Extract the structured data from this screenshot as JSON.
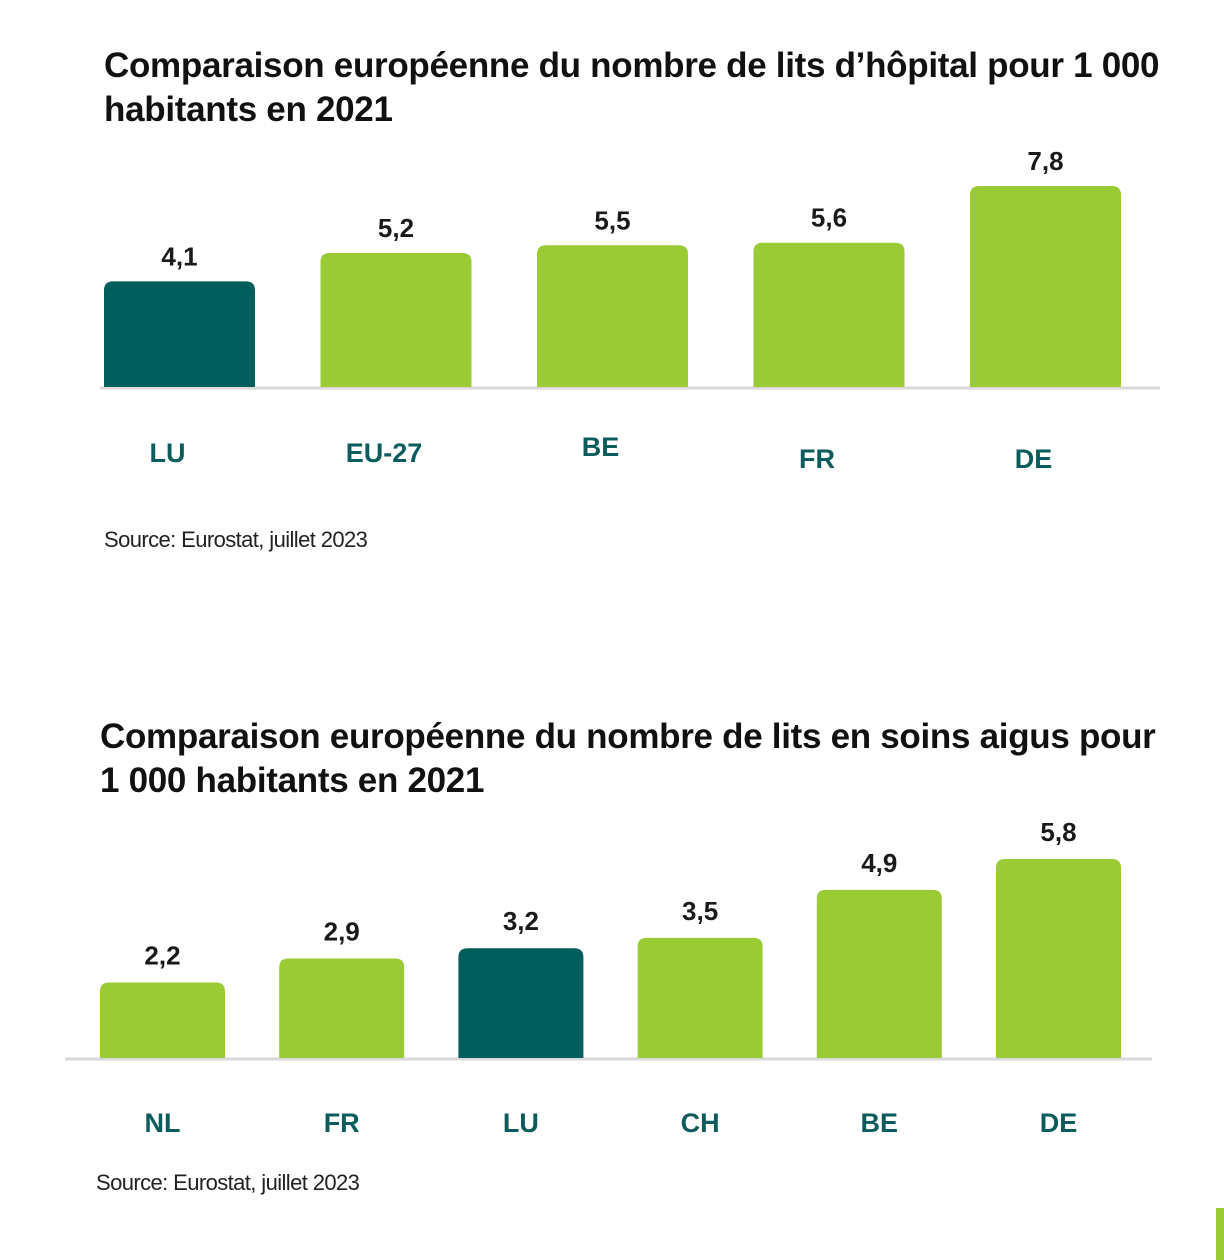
{
  "colors": {
    "highlight": "#005f5c",
    "default": "#9aca34",
    "axis": "#d9d9d9",
    "category_label": "#0b5c5c",
    "accent": "#9aca34"
  },
  "chart_data": [
    {
      "type": "bar",
      "title": "Comparaison européenne du nombre de lits d’hôpital pour 1 000 habitants en 2021",
      "categories": [
        "LU",
        "EU-27",
        "BE",
        "FR",
        "DE"
      ],
      "values": [
        4.1,
        5.2,
        5.5,
        5.6,
        7.8
      ],
      "value_labels": [
        "4,1",
        "5,2",
        "5,5",
        "5,6",
        "7,8"
      ],
      "highlight": [
        "LU"
      ],
      "xlabel": "",
      "ylabel": "",
      "ylim": [
        0,
        7.8
      ],
      "grid": false,
      "legend": "none",
      "source": "Source: Eurostat, juillet 2023"
    },
    {
      "type": "bar",
      "title": "Comparaison européenne du nombre de lits en soins aigus pour 1 000 habitants en 2021",
      "categories": [
        "NL",
        "FR",
        "LU",
        "CH",
        "BE",
        "DE"
      ],
      "values": [
        2.2,
        2.9,
        3.2,
        3.5,
        4.9,
        5.8
      ],
      "value_labels": [
        "2,2",
        "2,9",
        "3,2",
        "3,5",
        "4,9",
        "5,8"
      ],
      "highlight": [
        "LU"
      ],
      "xlabel": "",
      "ylabel": "",
      "ylim": [
        0,
        5.8
      ],
      "grid": false,
      "legend": "none",
      "source": "Source: Eurostat, juillet 2023"
    }
  ]
}
